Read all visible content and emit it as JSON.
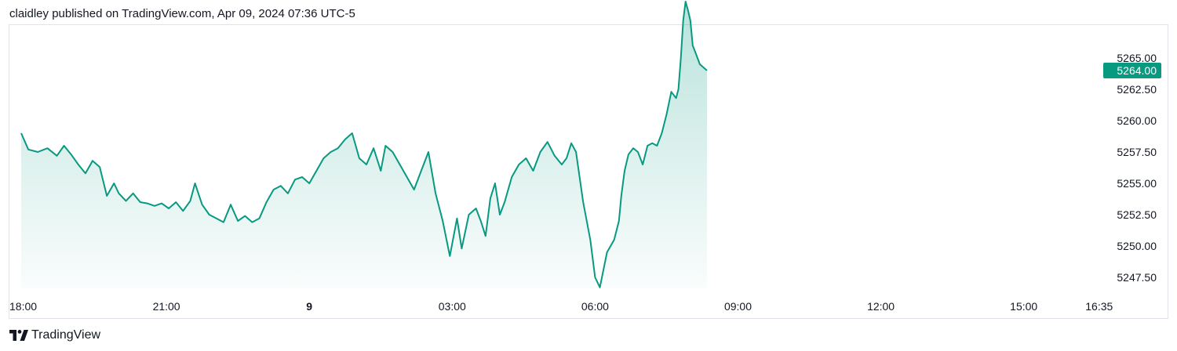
{
  "header": {
    "published_text": "claidley published on TradingView.com, Apr 09, 2024 07:36 UTC-5"
  },
  "footer": {
    "logo_text": "TradingView",
    "logo_icon": "tradingview-logo-icon"
  },
  "colors": {
    "line": "#089981",
    "fill_top": "#089981",
    "badge_bg": "#089981",
    "badge_text": "#ffffff",
    "axis_text": "#131722",
    "frame": "#e0e3eb"
  },
  "chart_data": {
    "type": "area",
    "title": "",
    "xlabel": "",
    "ylabel": "",
    "ylim": [
      5245.0,
      5270.0
    ],
    "x_tick_labels": [
      {
        "label": "18:00",
        "t": 0,
        "bold": false
      },
      {
        "label": "21:00",
        "t": 3,
        "bold": false
      },
      {
        "label": "9",
        "t": 6,
        "bold": true
      },
      {
        "label": "03:00",
        "t": 9,
        "bold": false
      },
      {
        "label": "06:00",
        "t": 12,
        "bold": false
      },
      {
        "label": "09:00",
        "t": 15,
        "bold": false
      },
      {
        "label": "12:00",
        "t": 18,
        "bold": false
      },
      {
        "label": "15:00",
        "t": 21,
        "bold": false
      },
      {
        "label": "16:35",
        "t": 22.583,
        "bold": false
      }
    ],
    "y_tick_labels": [
      "5247.50",
      "5250.00",
      "5252.50",
      "5255.00",
      "5257.50",
      "5260.00",
      "5262.50",
      "5265.00"
    ],
    "last_price_label": "5264.00",
    "last_price": 5264.0,
    "series": [
      {
        "x": [
          -0.05,
          0.1,
          0.3,
          0.5,
          0.7,
          0.85,
          1.0,
          1.15,
          1.3,
          1.45,
          1.6,
          1.75,
          1.9,
          2.0,
          2.15,
          2.3,
          2.45,
          2.6,
          2.75,
          2.9,
          3.05,
          3.2,
          3.35,
          3.5,
          3.6,
          3.75,
          3.9,
          4.05,
          4.2,
          4.35,
          4.5,
          4.65,
          4.8,
          4.95,
          5.1,
          5.25,
          5.4,
          5.55,
          5.7,
          5.85,
          6.0,
          6.15,
          6.3,
          6.45,
          6.6,
          6.75,
          6.9,
          7.05,
          7.2,
          7.35,
          7.5,
          7.6,
          7.75,
          7.9,
          8.05,
          8.2,
          8.35,
          8.5,
          8.65,
          8.8,
          8.95,
          9.1,
          9.2,
          9.35,
          9.5,
          9.6,
          9.7,
          9.8,
          9.9,
          10.0,
          10.1,
          10.25,
          10.4,
          10.55,
          10.7,
          10.85,
          11.0,
          11.15,
          11.3,
          11.4,
          11.5,
          11.6,
          11.75,
          11.9,
          12.0,
          12.1,
          12.25,
          12.4,
          12.5,
          12.55,
          12.62,
          12.7,
          12.8,
          12.9,
          13.0,
          13.1,
          13.2,
          13.3,
          13.4,
          13.5,
          13.6,
          13.7,
          13.75,
          13.8,
          13.85,
          13.9,
          13.95,
          14.0,
          14.05,
          14.1,
          14.2,
          14.35
        ],
        "values": [
          5259.0,
          5257.7,
          5257.5,
          5257.8,
          5257.2,
          5258.0,
          5257.3,
          5256.5,
          5255.8,
          5256.8,
          5256.3,
          5254.0,
          5255.0,
          5254.2,
          5253.6,
          5254.2,
          5253.5,
          5253.4,
          5253.2,
          5253.4,
          5253.0,
          5253.5,
          5252.8,
          5253.6,
          5255.0,
          5253.3,
          5252.5,
          5252.2,
          5251.9,
          5253.3,
          5252.0,
          5252.4,
          5251.9,
          5252.2,
          5253.5,
          5254.5,
          5254.8,
          5254.2,
          5255.3,
          5255.5,
          5255.0,
          5256.0,
          5257.0,
          5257.5,
          5257.8,
          5258.5,
          5259.0,
          5257.0,
          5256.5,
          5257.8,
          5256.0,
          5258.0,
          5257.5,
          5256.5,
          5255.5,
          5254.5,
          5256.0,
          5257.5,
          5254.2,
          5252.0,
          5249.2,
          5252.2,
          5249.8,
          5252.5,
          5253.0,
          5252.0,
          5250.8,
          5253.8,
          5255.0,
          5252.5,
          5253.5,
          5255.5,
          5256.5,
          5257.0,
          5256.0,
          5257.5,
          5258.3,
          5257.2,
          5256.5,
          5257.0,
          5258.2,
          5257.5,
          5253.5,
          5250.5,
          5247.5,
          5246.7,
          5249.5,
          5250.5,
          5252.0,
          5254.0,
          5256.0,
          5257.3,
          5257.8,
          5257.5,
          5256.5,
          5258.0,
          5258.2,
          5258.0,
          5259.0,
          5260.5,
          5262.3,
          5261.8,
          5262.5,
          5265.0,
          5268.0,
          5269.5,
          5268.8,
          5268.0,
          5266.0,
          5265.5,
          5264.5,
          5264.0
        ]
      }
    ],
    "grid": false,
    "legend": "none"
  }
}
